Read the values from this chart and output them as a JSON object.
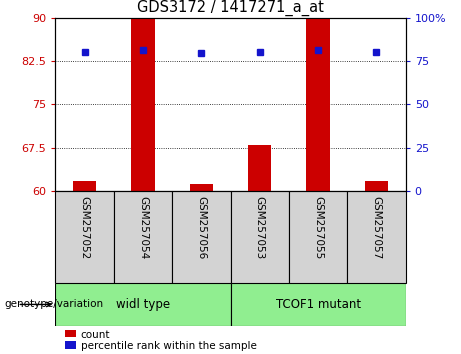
{
  "title": "GDS3172 / 1417271_a_at",
  "samples": [
    "GSM257052",
    "GSM257054",
    "GSM257056",
    "GSM257053",
    "GSM257055",
    "GSM257057"
  ],
  "red_bar_values": [
    61.8,
    90,
    61.3,
    68.0,
    90,
    61.8
  ],
  "blue_dot_values": [
    80.0,
    81.5,
    79.5,
    80.0,
    81.5,
    80.0
  ],
  "ylim_left": [
    60,
    90
  ],
  "ylim_right": [
    0,
    100
  ],
  "yticks_left": [
    60,
    67.5,
    75,
    82.5,
    90
  ],
  "ytick_labels_left": [
    "60",
    "67.5",
    "75",
    "82.5",
    "90"
  ],
  "yticks_right": [
    0,
    25,
    50,
    75,
    100
  ],
  "ytick_labels_right": [
    "0",
    "25",
    "50",
    "75",
    "100%"
  ],
  "bar_color": "#CC0000",
  "dot_color": "#1414CC",
  "background_color": "#ffffff",
  "label_count": "count",
  "label_percentile": "percentile rank within the sample",
  "genotype_label": "genotype/variation",
  "group1_label": "widl type",
  "group2_label": "TCOF1 mutant",
  "group_bg_color": "#90EE90",
  "sample_box_color": "#D3D3D3",
  "bar_width": 0.4
}
